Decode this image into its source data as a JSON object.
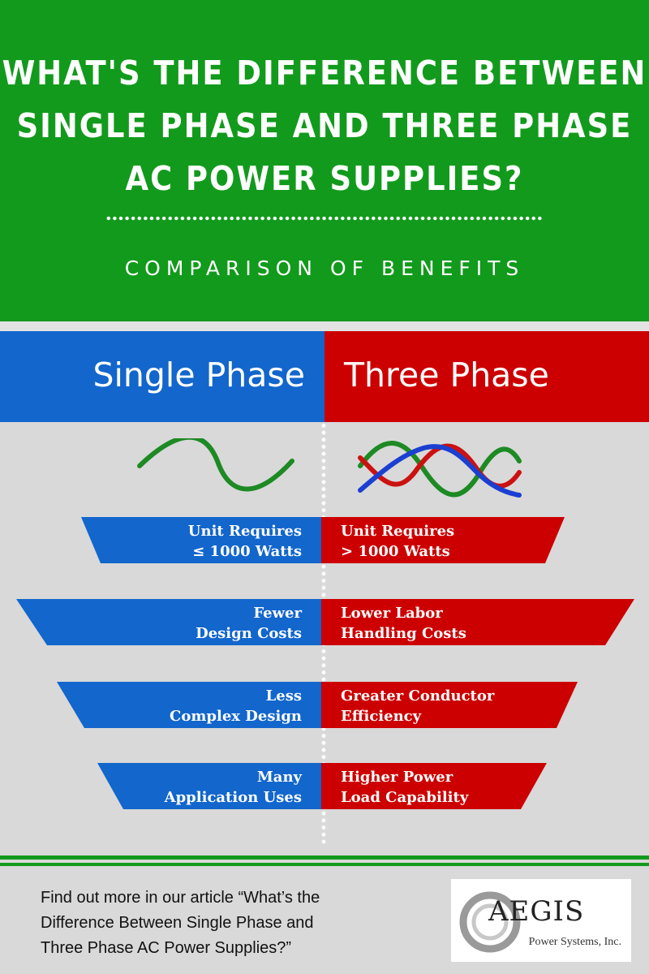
{
  "hero": {
    "title_lines": [
      "WHAT'S THE DIFFERENCE BETWEEN",
      "SINGLE PHASE AND THREE PHASE",
      "AC POWER SUPPLIES?"
    ],
    "subtitle": "COMPARISON OF BENEFITS",
    "background": "#129a1c"
  },
  "columns": {
    "left": {
      "label": "Single Phase",
      "color": "#1266cc"
    },
    "right": {
      "label": "Three Phase",
      "color": "#cc0000"
    }
  },
  "waves": {
    "single_phase_icon": "sine-wave-icon",
    "three_phase_icon": "three-phase-wave-icon",
    "colors": [
      "#1d8a23",
      "#cc1111",
      "#1a3fd1"
    ]
  },
  "rows": [
    {
      "left": [
        "Unit Requires",
        "≤ 1000 Watts"
      ],
      "right": [
        "Unit Requires",
        "> 1000 Watts"
      ]
    },
    {
      "left": [
        "Fewer",
        "Design Costs"
      ],
      "right": [
        "Lower Labor",
        "Handling Costs"
      ]
    },
    {
      "left": [
        "Less",
        "Complex Design"
      ],
      "right": [
        "Greater Conductor",
        "Efficiency"
      ]
    },
    {
      "left": [
        "Many",
        "Application Uses"
      ],
      "right": [
        "Higher Power",
        "Load Capability"
      ]
    }
  ],
  "footer": {
    "lines": [
      "Find out more in our article “What’s the",
      "Difference Between Single Phase and",
      "Three Phase AC Power Supplies?”"
    ]
  },
  "logo": {
    "name": "AEGIS",
    "tagline": "Power Systems, Inc."
  }
}
